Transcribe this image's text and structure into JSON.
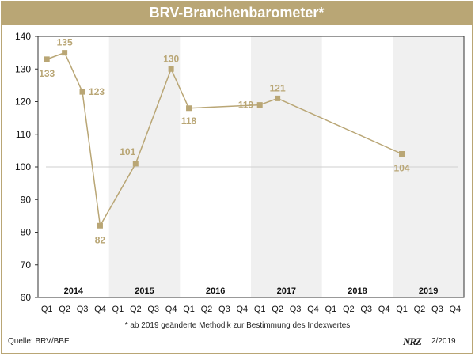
{
  "title": "BRV-Branchenbarometer*",
  "footnote": "* ab 2019 geänderte Methodik zur Bestimmung des Indexwertes",
  "source": "Quelle: BRV/BBE",
  "brand": "NRZ",
  "date": "2/2019",
  "colors": {
    "accent": "#b9a675",
    "band": "#f0f0f0",
    "grid": "#cfcfcf"
  },
  "chart_data": {
    "type": "line",
    "title": "BRV-Branchenbarometer*",
    "xlabel": "",
    "ylabel": "",
    "ylim": [
      60,
      140
    ],
    "yticks": [
      60,
      70,
      80,
      90,
      100,
      110,
      120,
      130,
      140
    ],
    "reference_line": 100,
    "years": [
      "2014",
      "2015",
      "2016",
      "2017",
      "2018",
      "2019"
    ],
    "shaded_years": [
      "2015",
      "2017",
      "2019"
    ],
    "categories": [
      "Q1",
      "Q2",
      "Q3",
      "Q4",
      "Q1",
      "Q2",
      "Q3",
      "Q4",
      "Q1",
      "Q2",
      "Q3",
      "Q4",
      "Q1",
      "Q2",
      "Q3",
      "Q4",
      "Q1",
      "Q2",
      "Q3",
      "Q4",
      "Q1",
      "Q2",
      "Q3",
      "Q4"
    ],
    "series": [
      {
        "values": [
          133,
          135,
          123,
          82,
          null,
          101,
          null,
          130,
          118,
          null,
          null,
          null,
          119,
          121,
          null,
          null,
          null,
          null,
          null,
          null,
          104,
          null,
          null,
          null
        ],
        "labels": [
          "133",
          "135",
          "123",
          "82",
          null,
          "101",
          null,
          "130",
          "118",
          null,
          null,
          null,
          "119",
          "121",
          null,
          null,
          null,
          null,
          null,
          null,
          "104",
          null,
          null,
          null
        ]
      }
    ]
  }
}
